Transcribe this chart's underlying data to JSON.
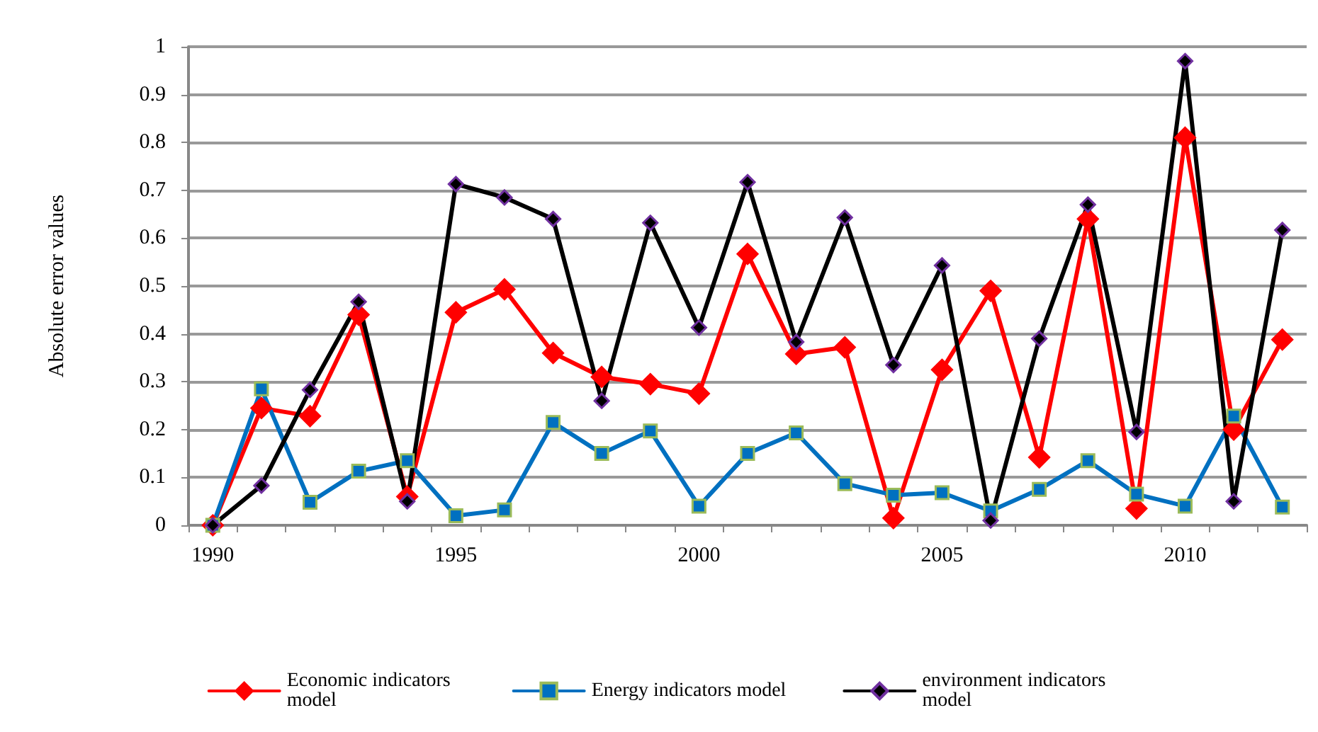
{
  "chart_data": {
    "type": "line",
    "ylabel": "Absolute error values",
    "categories": [
      "1990",
      null,
      null,
      null,
      null,
      "1995",
      null,
      null,
      null,
      null,
      "2000",
      null,
      null,
      null,
      null,
      "2005",
      null,
      null,
      null,
      null,
      "2010",
      null,
      null
    ],
    "series": [
      {
        "name": "Economic indicators model",
        "color": "#ff0000",
        "marker": "diamond",
        "values": [
          0,
          0.245,
          0.228,
          0.44,
          0.06,
          0.445,
          0.493,
          0.36,
          0.31,
          0.295,
          0.275,
          0.567,
          0.358,
          0.372,
          0.015,
          0.325,
          0.49,
          0.142,
          0.64,
          0.035,
          0.81,
          0.2,
          0.388
        ]
      },
      {
        "name": "Energy indicators model",
        "color": "#0070c0",
        "marker": "square",
        "values": [
          0,
          0.285,
          0.048,
          0.113,
          0.135,
          0.02,
          0.032,
          0.215,
          0.15,
          0.197,
          0.04,
          0.15,
          0.193,
          0.087,
          0.063,
          0.068,
          0.03,
          0.075,
          0.135,
          0.065,
          0.04,
          0.228,
          0.038
        ]
      },
      {
        "name": "environment indicators model",
        "color": "#000000",
        "marker": "diamond",
        "values": [
          0,
          0.083,
          0.283,
          0.467,
          0.05,
          0.713,
          0.685,
          0.64,
          0.26,
          0.632,
          0.413,
          0.717,
          0.383,
          0.643,
          0.335,
          0.543,
          0.01,
          0.39,
          0.67,
          0.195,
          0.97,
          0.05,
          0.617
        ]
      }
    ],
    "ylim": [
      0,
      1
    ],
    "yticks": [
      0,
      0.1,
      0.2,
      0.3,
      0.4,
      0.5,
      0.6,
      0.7,
      0.8,
      0.9,
      1
    ],
    "grid": "y",
    "legend": "bottom",
    "line_style": "solid"
  }
}
